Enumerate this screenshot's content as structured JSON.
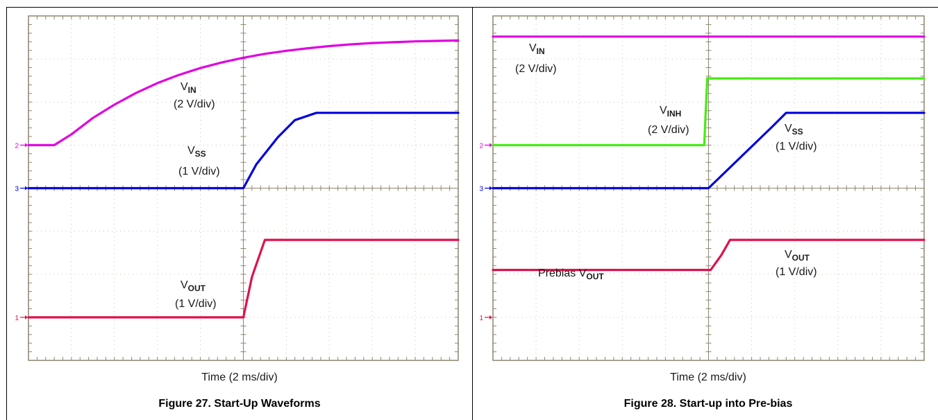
{
  "colors": {
    "grid_line": "#c9c3ad",
    "major_line": "#8c866f",
    "frame": "#8c866f",
    "vin": "#e000e0",
    "vss": "#0000e0",
    "vout": "#e0104a",
    "vinh": "#44ee11"
  },
  "chart_data": [
    {
      "type": "line",
      "caption": "Figure 27. Start-Up Waveforms",
      "xlabel": "Time (2 ms/div)",
      "x_unit": "div",
      "y_unit": "div",
      "xlim": [
        0,
        10
      ],
      "ylim": [
        -4,
        4
      ],
      "grid": true,
      "ground_markers": [
        {
          "label": "2",
          "y": 1,
          "color": "#e000e0"
        },
        {
          "label": "3",
          "y": 0,
          "color": "#0000e0"
        },
        {
          "label": "1",
          "y": -3,
          "color": "#e0104a"
        }
      ],
      "series": [
        {
          "name_main": "V",
          "name_sub": "IN",
          "scale": "(2 V/div)",
          "color": "#e000e0",
          "x": [
            0,
            0.6,
            1,
            1.5,
            2,
            2.5,
            3,
            3.5,
            4,
            4.5,
            5,
            5.5,
            6,
            6.5,
            7,
            7.5,
            8,
            8.5,
            9,
            9.5,
            10
          ],
          "y": [
            1,
            1,
            1.25,
            1.63,
            1.94,
            2.21,
            2.44,
            2.63,
            2.79,
            2.92,
            3.03,
            3.12,
            3.19,
            3.25,
            3.3,
            3.34,
            3.37,
            3.39,
            3.41,
            3.42,
            3.43
          ]
        },
        {
          "name_main": "V",
          "name_sub": "SS",
          "scale": "(1 V/div)",
          "color": "#0000e0",
          "x": [
            0,
            5,
            5.3,
            5.8,
            6.2,
            6.7,
            10
          ],
          "y": [
            0,
            0,
            0.55,
            1.18,
            1.58,
            1.75,
            1.75
          ]
        },
        {
          "name_main": "V",
          "name_sub": "OUT",
          "scale": "(1 V/div)",
          "color": "#e0104a",
          "x": [
            0,
            5,
            5.2,
            5.5,
            10
          ],
          "y": [
            -3,
            -3,
            -2.06,
            -1.2,
            -1.2
          ]
        }
      ]
    },
    {
      "type": "line",
      "caption": "Figure 28. Start-up into Pre-bias",
      "xlabel": "Time (2 ms/div)",
      "x_unit": "div",
      "y_unit": "div",
      "xlim": [
        0,
        10
      ],
      "ylim": [
        -4,
        4
      ],
      "grid": true,
      "ground_markers": [
        {
          "label": "2",
          "y": 1,
          "color": "#e000e0"
        },
        {
          "label": "3",
          "y": 0,
          "color": "#0000e0"
        },
        {
          "label": "1",
          "y": -3,
          "color": "#e0104a"
        }
      ],
      "series": [
        {
          "name_main": "V",
          "name_sub": "IN",
          "scale": "(2 V/div)",
          "color": "#e000e0",
          "x": [
            0,
            10
          ],
          "y": [
            3.52,
            3.52
          ]
        },
        {
          "name_main": "V",
          "name_sub": "INH",
          "scale": "(2 V/div)",
          "color": "#44ee11",
          "x": [
            0,
            9.8,
            9.85,
            9.95,
            10
          ],
          "y": [
            1,
            1,
            1.7,
            2.55,
            2.55
          ],
          "x_actual": [
            0,
            4.9,
            4.93,
            4.97,
            10
          ]
        },
        {
          "name_main": "V",
          "name_sub": "SS",
          "scale": "(1 V/div)",
          "color": "#0000e0",
          "x": [
            0,
            5,
            6.5,
            6.8,
            10
          ],
          "y": [
            0,
            0,
            1.45,
            1.75,
            1.75
          ]
        },
        {
          "name_main": "Prebias V",
          "name_sub": "OUT",
          "scale": "",
          "color": "#e0104a",
          "x": [
            0,
            5.05,
            5.3,
            5.5,
            10
          ],
          "y": [
            -1.9,
            -1.9,
            -1.55,
            -1.2,
            -1.2
          ]
        },
        {
          "name_main": "V",
          "name_sub": "OUT",
          "scale": "(1 V/div)",
          "color": "#e0104a",
          "x": [],
          "y": []
        }
      ]
    }
  ]
}
